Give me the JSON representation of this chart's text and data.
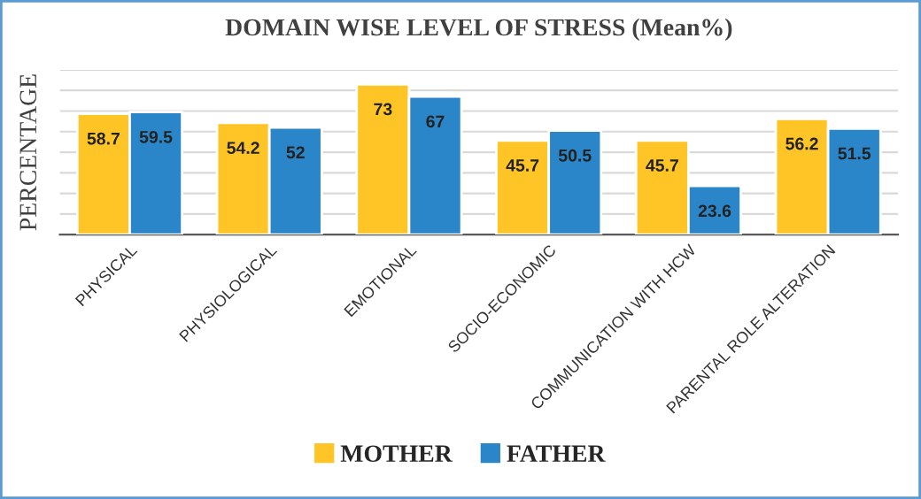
{
  "chart_data": {
    "type": "bar",
    "title": "DOMAIN WISE LEVEL OF STRESS (Mean%)",
    "ylabel": "PERCENTAGE",
    "categories": [
      "PHYSICAL",
      "PHYSIOLOGICAL",
      "EMOTIONAL",
      "SOCIO-ECONOMIC",
      "COMMUNICATION WITH HCW",
      "PARENTAL ROLE ALTERATION"
    ],
    "series": [
      {
        "name": "MOTHER",
        "color": "#ffc425",
        "values": [
          58.7,
          54.2,
          73,
          45.7,
          45.7,
          56.2
        ]
      },
      {
        "name": "FATHER",
        "color": "#2a86c8",
        "values": [
          59.5,
          52,
          67,
          50.5,
          23.6,
          51.5
        ]
      }
    ],
    "ylim": [
      0,
      80
    ],
    "yticks": [
      {
        "value": 0,
        "label": null
      },
      {
        "value": 10,
        "label": null
      },
      {
        "value": 20,
        "label": null
      },
      {
        "value": 30,
        "label": null
      },
      {
        "value": 40,
        "label": null
      },
      {
        "value": 50,
        "label": null
      },
      {
        "value": 60,
        "label": null
      },
      {
        "value": 70,
        "label": null
      },
      {
        "value": 80,
        "label": null
      }
    ],
    "grid": "y",
    "legend": "bottom",
    "data_labels": true
  }
}
